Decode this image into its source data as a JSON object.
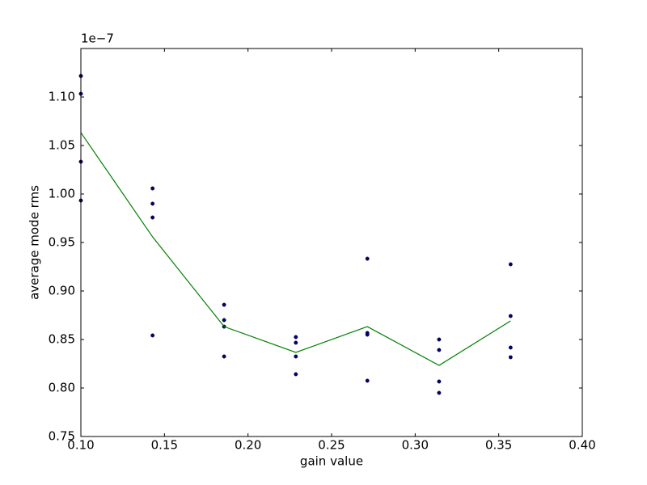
{
  "chart_data": {
    "type": "scatter",
    "offset_label": "1e−7",
    "x_label": "gain value",
    "y_label": "average mode rms",
    "xlim": [
      0.1,
      0.4
    ],
    "ylim": [
      0.75,
      1.15
    ],
    "xticks": [
      {
        "value": 0.1,
        "label": "0.10"
      },
      0.15,
      {
        "value": 0.2,
        "label": "0.20"
      },
      0.25,
      {
        "value": 0.3,
        "label": "0.30"
      },
      0.35,
      {
        "value": 0.4,
        "label": "0.40"
      }
    ],
    "yticks": [
      0.75,
      {
        "value": 0.8,
        "label": "0.80"
      },
      0.85,
      {
        "value": 0.9,
        "label": "0.90"
      },
      0.95,
      {
        "value": 1.0,
        "label": "1.00"
      },
      1.05,
      {
        "value": 1.1,
        "label": "1.10"
      }
    ],
    "series": [
      {
        "type": "scatter",
        "color": "#000080",
        "x": [
          0.1,
          0.1,
          0.1,
          0.1,
          0.1429,
          0.1429,
          0.1429,
          0.1429,
          0.1857,
          0.1857,
          0.1857,
          0.1857,
          0.2286,
          0.2286,
          0.2286,
          0.2286,
          0.2714,
          0.2714,
          0.2714,
          0.2714,
          0.3143,
          0.3143,
          0.3143,
          0.3143,
          0.3571,
          0.3571,
          0.3571,
          0.3571
        ],
        "values": [
          1.1217,
          1.1033,
          1.0333,
          0.9933,
          1.0058,
          0.99,
          0.9758,
          0.8542,
          0.8858,
          0.87,
          0.8633,
          0.8325,
          0.8525,
          0.8467,
          0.8325,
          0.8142,
          0.9333,
          0.8567,
          0.855,
          0.8075,
          0.85,
          0.8392,
          0.8067,
          0.795,
          0.9275,
          0.8742,
          0.8417,
          0.8317
        ]
      },
      {
        "type": "line",
        "color": "#008000",
        "x": [
          0.1,
          0.1429,
          0.1857,
          0.2286,
          0.2714,
          0.3143,
          0.3571
        ],
        "values": [
          1.0633,
          0.9558,
          0.8633,
          0.8367,
          0.8633,
          0.8233,
          0.8692
        ]
      }
    ]
  }
}
